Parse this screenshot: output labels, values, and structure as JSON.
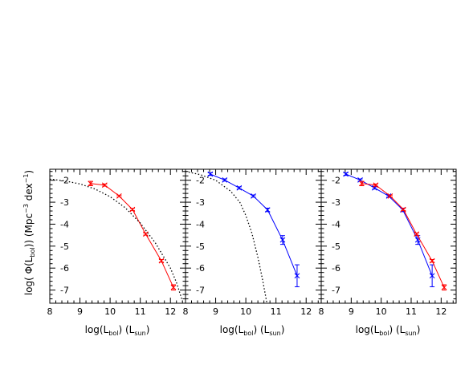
{
  "chart_data": [
    {
      "type": "line",
      "xlim": [
        8,
        12.5
      ],
      "ylim": [
        -7.6,
        -1.5
      ],
      "xticks": [
        "8",
        "9",
        "10",
        "11",
        "12"
      ],
      "yticks": [
        "-2",
        "-3",
        "-4",
        "-5",
        "-6",
        "-7"
      ],
      "series": [
        {
          "color": "#ff0000",
          "style": "solid",
          "marker": "x",
          "x": [
            9.35,
            9.82,
            10.3,
            10.74,
            11.18,
            11.7,
            12.1
          ],
          "y": [
            -2.15,
            -2.22,
            -2.72,
            -3.33,
            -4.45,
            -5.67,
            -6.88
          ],
          "err": [
            0.1,
            0.05,
            0.04,
            0.05,
            0.05,
            0.06,
            0.12
          ]
        },
        {
          "color": "#000000",
          "style": "dotted",
          "x": [
            8.0,
            8.5,
            9.0,
            9.5,
            10.0,
            10.5,
            11.0,
            11.5,
            12.0,
            12.2,
            12.4
          ],
          "y": [
            -1.95,
            -2.03,
            -2.17,
            -2.4,
            -2.75,
            -3.25,
            -3.95,
            -4.85,
            -6.0,
            -6.65,
            -7.5
          ]
        }
      ]
    },
    {
      "type": "line",
      "xlim": [
        8,
        12.5
      ],
      "ylim": [
        -7.6,
        -1.5
      ],
      "xticks": [
        "8",
        "9",
        "10",
        "11",
        "12"
      ],
      "yticks": [
        "-2",
        "-3",
        "-4",
        "-5",
        "-6",
        "-7"
      ],
      "series": [
        {
          "color": "#0000ff",
          "style": "solid",
          "marker": "x",
          "x": [
            8.82,
            9.3,
            9.78,
            10.25,
            10.72,
            11.22,
            11.7
          ],
          "y": [
            -1.72,
            -1.99,
            -2.35,
            -2.72,
            -3.35,
            -4.72,
            -6.35
          ],
          "err": [
            0.06,
            0.05,
            0.05,
            0.05,
            0.08,
            0.2,
            0.5
          ]
        },
        {
          "color": "#000000",
          "style": "dotted",
          "x": [
            8.0,
            8.5,
            9.0,
            9.5,
            9.8,
            10.0,
            10.2,
            10.4,
            10.55,
            10.7
          ],
          "y": [
            -1.6,
            -1.75,
            -2.0,
            -2.5,
            -3.0,
            -3.6,
            -4.4,
            -5.5,
            -6.5,
            -7.6
          ]
        }
      ]
    },
    {
      "type": "line",
      "xlim": [
        8,
        12.5
      ],
      "ylim": [
        -7.6,
        -1.5
      ],
      "xticks": [
        "8",
        "9",
        "10",
        "11",
        "12"
      ],
      "yticks": [
        "-2",
        "-3",
        "-4",
        "-5",
        "-6",
        "-7"
      ],
      "series": [
        {
          "color": "#0000ff",
          "style": "solid",
          "marker": "x",
          "x": [
            8.82,
            9.3,
            9.78,
            10.25,
            10.72,
            11.22,
            11.7
          ],
          "y": [
            -1.72,
            -1.99,
            -2.35,
            -2.72,
            -3.35,
            -4.72,
            -6.35
          ],
          "err": [
            0.06,
            0.05,
            0.05,
            0.05,
            0.08,
            0.2,
            0.5
          ]
        },
        {
          "color": "#ff0000",
          "style": "solid",
          "marker": "x",
          "x": [
            9.35,
            9.82,
            10.3,
            10.74,
            11.18,
            11.7,
            12.1
          ],
          "y": [
            -2.15,
            -2.22,
            -2.72,
            -3.33,
            -4.45,
            -5.67,
            -6.88
          ],
          "err": [
            0.1,
            0.05,
            0.04,
            0.05,
            0.05,
            0.06,
            0.12
          ]
        }
      ]
    }
  ],
  "axes": {
    "xlabel": {
      "main": "log(L",
      "sub1": "bol",
      "mid": ")  (L",
      "sub2": "sun",
      "end": ")"
    },
    "ylabel": {
      "main": "log( Φ(L",
      "sub": "bol",
      "mid": "))  (Mpc",
      "sup": "−3",
      "end": " dex",
      "sup2": "−1",
      "close": ")"
    }
  }
}
